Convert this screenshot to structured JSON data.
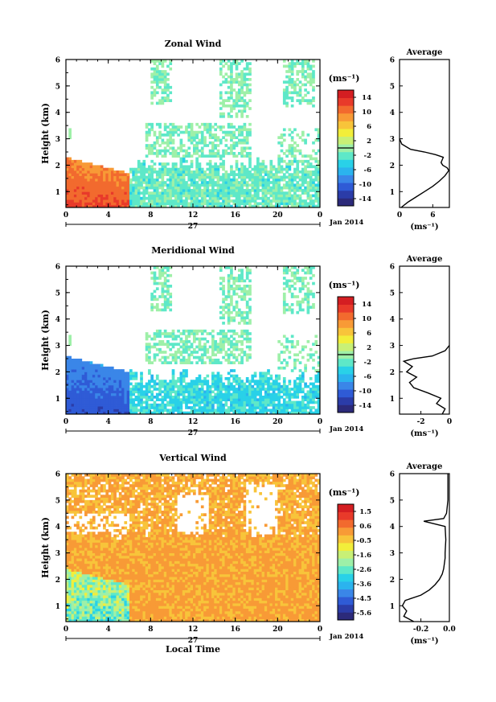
{
  "chart_data": [
    {
      "type": "heatmap",
      "title": "Zonal Wind",
      "ylabel": "Height (km)",
      "x_ticks": [
        "0",
        "4",
        "8",
        "12",
        "16",
        "20",
        "0"
      ],
      "y_ticks": [
        "1",
        "2",
        "3",
        "4",
        "5",
        "6"
      ],
      "xlim": [
        0,
        24
      ],
      "ylim": [
        0.4,
        6.0
      ],
      "date_label": "27",
      "month_label": "Jan 2014",
      "colorbar": {
        "unit": "(ms⁻¹)",
        "ticks": [
          "14",
          "10",
          "6",
          "2",
          "-2",
          "-6",
          "-10",
          "-14"
        ],
        "range": [
          -16,
          16
        ]
      },
      "fill": {
        "low_value": 12,
        "low_top": 2.3,
        "low_until": 6,
        "mid_value": -2,
        "mid_top": 1.8,
        "upper_value": -1
      },
      "profile": {
        "title": "Average",
        "xlabel": "(ms⁻¹)",
        "x_ticks": [
          "0",
          "6"
        ],
        "xlim": [
          0,
          9
        ],
        "heights": [
          0.4,
          0.6,
          0.8,
          1.0,
          1.2,
          1.4,
          1.6,
          1.8,
          1.9,
          2.0,
          2.1,
          2.2,
          2.3,
          2.4,
          2.5,
          2.6,
          2.8,
          3.0
        ],
        "values": [
          0.3,
          1.5,
          3.0,
          4.5,
          6.0,
          7.2,
          8.2,
          8.9,
          8.6,
          7.8,
          7.5,
          7.7,
          7.9,
          6.5,
          4.5,
          2.0,
          0.4,
          0.0
        ]
      }
    },
    {
      "type": "heatmap",
      "title": "Meridional Wind",
      "ylabel": "Height (km)",
      "x_ticks": [
        "0",
        "4",
        "8",
        "12",
        "16",
        "20",
        "0"
      ],
      "y_ticks": [
        "1",
        "2",
        "3",
        "4",
        "5",
        "6"
      ],
      "xlim": [
        0,
        24
      ],
      "ylim": [
        0.4,
        6.0
      ],
      "date_label": "27",
      "month_label": "Jan 2014",
      "colorbar": {
        "unit": "(ms⁻¹)",
        "ticks": [
          "14",
          "10",
          "6",
          "2",
          "-2",
          "-6",
          "-10",
          "-14"
        ],
        "range": [
          -16,
          16
        ]
      },
      "fill": {
        "low_value": -11,
        "low_top": 2.6,
        "low_until": 6,
        "mid_value": -4,
        "mid_top": 1.6,
        "upper_value": -1
      },
      "profile": {
        "title": "Average",
        "xlabel": "(ms⁻¹)",
        "x_ticks": [
          "-2",
          "0"
        ],
        "xlim": [
          -3.5,
          0
        ],
        "heights": [
          0.4,
          0.6,
          0.8,
          1.0,
          1.2,
          1.4,
          1.6,
          1.8,
          2.0,
          2.2,
          2.4,
          2.5,
          2.6,
          2.8,
          3.0
        ],
        "values": [
          -0.5,
          -0.3,
          -0.9,
          -0.6,
          -1.5,
          -2.5,
          -2.8,
          -2.3,
          -3.0,
          -2.6,
          -3.2,
          -2.5,
          -1.2,
          -0.3,
          0.0
        ]
      }
    },
    {
      "type": "heatmap",
      "title": "Vertical Wind",
      "ylabel": "Height (km)",
      "xlabel": "Local Time",
      "x_ticks": [
        "0",
        "4",
        "8",
        "12",
        "16",
        "20",
        "0"
      ],
      "y_ticks": [
        "1",
        "2",
        "3",
        "4",
        "5",
        "6"
      ],
      "xlim": [
        0,
        24
      ],
      "ylim": [
        0.4,
        6.0
      ],
      "date_label": "27",
      "month_label": "Jan 2014",
      "colorbar": {
        "unit": "(ms⁻¹)",
        "ticks": [
          "1.5",
          "0.6",
          "-0.5",
          "-1.6",
          "-2.6",
          "-3.6",
          "-4.5",
          "-5.6"
        ],
        "range": [
          -6,
          2
        ]
      },
      "fill": {
        "low_value": -2.2,
        "low_top": 2.4,
        "low_until": 6,
        "mid_value": 0.0,
        "mid_top": 3.5,
        "upper_value": -0.1
      },
      "profile": {
        "title": "Average",
        "xlabel": "(ms⁻¹)",
        "x_ticks": [
          "-0.2",
          "0.0"
        ],
        "xlim": [
          -0.35,
          0.0
        ],
        "heights": [
          0.4,
          0.6,
          0.8,
          1.0,
          1.2,
          1.4,
          1.6,
          1.8,
          2.0,
          2.2,
          2.4,
          2.6,
          2.8,
          3.0,
          3.5,
          4.0,
          4.2,
          4.3,
          4.5,
          5.0,
          5.5,
          6.0
        ],
        "values": [
          -0.25,
          -0.32,
          -0.3,
          -0.33,
          -0.31,
          -0.2,
          -0.14,
          -0.1,
          -0.07,
          -0.05,
          -0.04,
          -0.035,
          -0.03,
          -0.03,
          -0.025,
          -0.03,
          -0.18,
          -0.04,
          -0.02,
          -0.01,
          -0.01,
          -0.01
        ]
      }
    }
  ]
}
